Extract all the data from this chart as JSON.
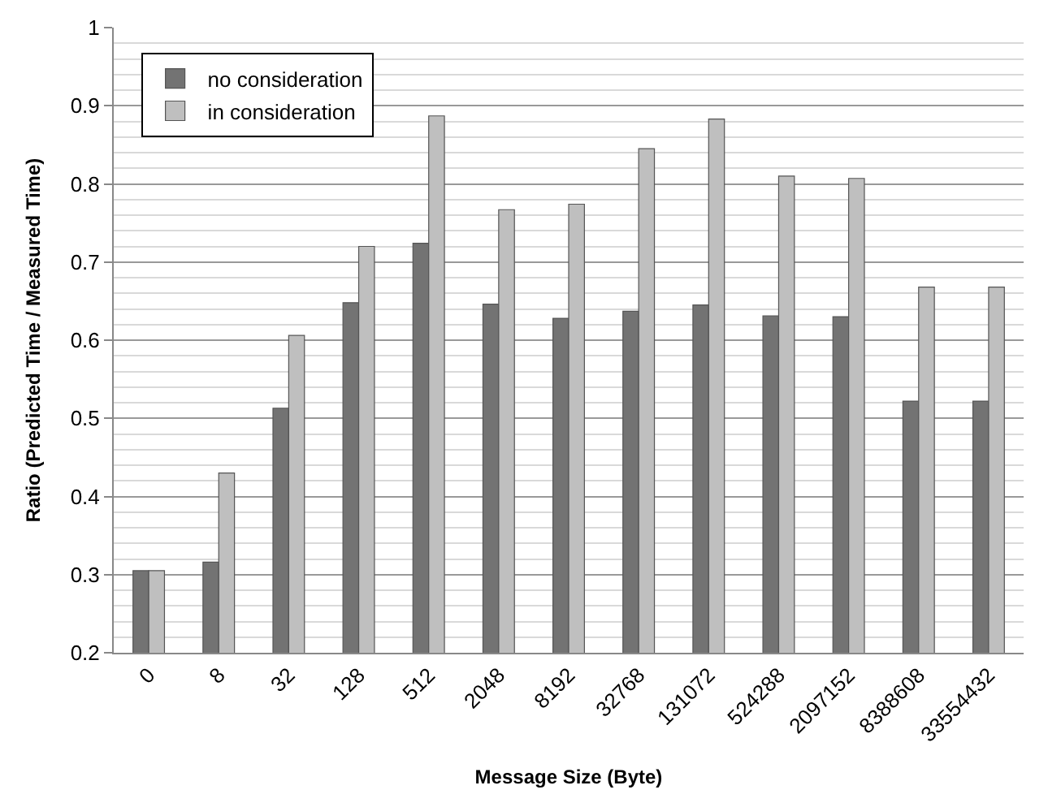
{
  "chart_data": {
    "type": "bar",
    "xlabel": "Message Size (Byte)",
    "ylabel": "Ratio (Predicted Time / Measured Time)",
    "categories": [
      "0",
      "8",
      "32",
      "128",
      "512",
      "2048",
      "8192",
      "32768",
      "131072",
      "524288",
      "2097152",
      "8388608",
      "33554432"
    ],
    "series": [
      {
        "name": "no consideration",
        "color": "#737373",
        "values": [
          0.305,
          0.316,
          0.513,
          0.648,
          0.724,
          0.646,
          0.628,
          0.637,
          0.645,
          0.631,
          0.63,
          0.522,
          0.522
        ]
      },
      {
        "name": "in consideration",
        "color": "#bfbfbf",
        "values": [
          0.305,
          0.43,
          0.606,
          0.72,
          0.887,
          0.767,
          0.774,
          0.845,
          0.883,
          0.81,
          0.807,
          0.668,
          0.668
        ]
      }
    ],
    "ylim": [
      0.2,
      1
    ],
    "yticks": [
      0.2,
      0.3,
      0.4,
      0.5,
      0.6,
      0.7,
      0.8,
      0.9,
      1
    ],
    "grid": "y",
    "legend": "top left"
  }
}
